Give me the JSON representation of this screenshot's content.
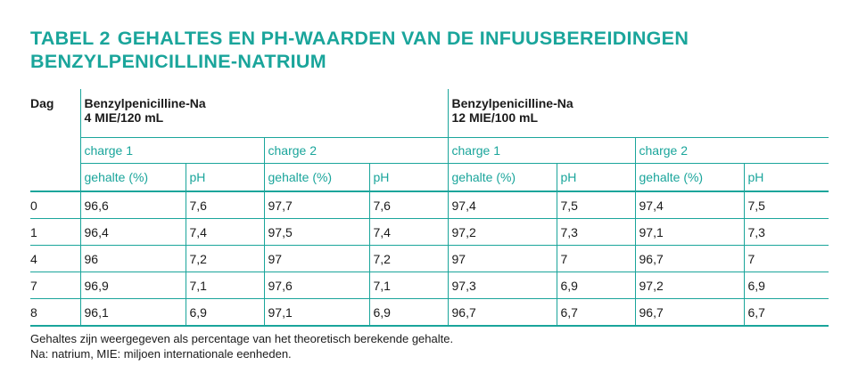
{
  "title": {
    "number": "TABEL 2",
    "line1": "GEHALTES EN PH-WAARDEN VAN DE INFUUSBEREIDINGEN",
    "line2": "BENZYLPENICILLINE-NATRIUM"
  },
  "table": {
    "dag_header": "Dag",
    "products": [
      {
        "name": "Benzylpenicilline-Na",
        "dose": "4 MIE/120 mL"
      },
      {
        "name": "Benzylpenicilline-Na",
        "dose": "12 MIE/100 mL"
      }
    ],
    "charges": [
      "charge 1",
      "charge 2",
      "charge 1",
      "charge 2"
    ],
    "subheaders": [
      "gehalte (%)",
      "pH",
      "gehalte (%)",
      "pH",
      "gehalte (%)",
      "pH",
      "gehalte (%)",
      "pH"
    ],
    "rows": [
      {
        "dag": "0",
        "cells": [
          "96,6",
          "7,6",
          "97,7",
          "7,6",
          "97,4",
          "7,5",
          "97,4",
          "7,5"
        ]
      },
      {
        "dag": "1",
        "cells": [
          "96,4",
          "7,4",
          "97,5",
          "7,4",
          "97,2",
          "7,3",
          "97,1",
          "7,3"
        ]
      },
      {
        "dag": "4",
        "cells": [
          "96",
          "7,2",
          "97",
          "7,2",
          "97",
          "7",
          "96,7",
          "7"
        ]
      },
      {
        "dag": "7",
        "cells": [
          "96,9",
          "7,1",
          "97,6",
          "7,1",
          "97,3",
          "6,9",
          "97,2",
          "6,9"
        ]
      },
      {
        "dag": "8",
        "cells": [
          "96,1",
          "6,9",
          "97,1",
          "6,9",
          "96,7",
          "6,7",
          "96,7",
          "6,7"
        ]
      }
    ]
  },
  "footnotes": [
    "Gehaltes zijn weergegeven als percentage van het theoretisch berekende gehalte.",
    "Na: natrium, MIE: miljoen internationale eenheden."
  ],
  "colors": {
    "accent": "#1aa59b",
    "text": "#1a1a1a"
  }
}
